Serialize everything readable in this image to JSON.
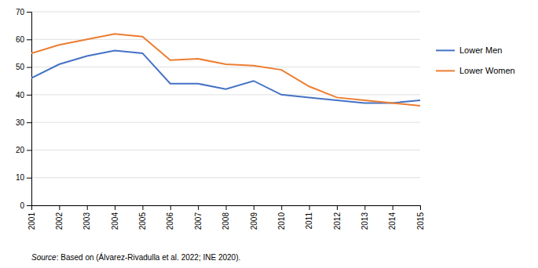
{
  "chart_data": {
    "type": "line",
    "x": [
      2001,
      2002,
      2003,
      2004,
      2005,
      2006,
      2007,
      2008,
      2009,
      2010,
      2011,
      2012,
      2013,
      2014,
      2015
    ],
    "xlim": [
      2001,
      2015
    ],
    "xticks": [
      2001,
      2002,
      2003,
      2004,
      2005,
      2006,
      2007,
      2008,
      2009,
      2010,
      2011,
      2012,
      2013,
      2014,
      2015
    ],
    "series": [
      {
        "name": "Lower Men",
        "color": "#4472C4",
        "values": [
          46,
          51,
          54,
          56,
          55,
          44,
          44,
          42,
          45,
          40,
          39,
          38,
          37,
          37,
          38
        ]
      },
      {
        "name": "Lower Women",
        "color": "#ED7D31",
        "values": [
          55,
          58,
          60,
          62,
          61,
          52.5,
          53,
          51,
          50.5,
          49,
          43,
          39,
          38,
          37,
          36
        ]
      }
    ],
    "ylim": [
      0,
      70
    ],
    "yticks": [
      0,
      10,
      20,
      30,
      40,
      50,
      60,
      70
    ],
    "grid": true,
    "legend": "right",
    "annotations": [
      "Source",
      ": Based on (Álvarez-Rivadulla et al. 2022; INE 2020)."
    ]
  }
}
